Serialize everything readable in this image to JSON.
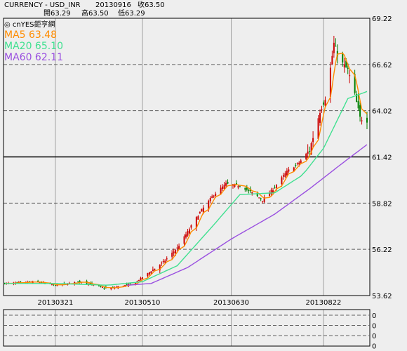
{
  "header": {
    "instrument": "CURRENCY  -  USD_INR",
    "date": "20130916",
    "close_label": "收63.50",
    "open_label": "開63.29",
    "high_label": "高63.50",
    "low_label": "低63.29"
  },
  "brand": "◎ cnYES鉅亨網",
  "colors": {
    "background": "#eeeeee",
    "up_candle": "#cc0000",
    "down_candle": "#008000",
    "ma5": "#ff8c00",
    "ma20": "#40e090",
    "ma60": "#9a50e0",
    "grid_dashed": "#606060",
    "grid_vertical": "#a0a0a0",
    "reference_line": "#000000"
  },
  "chart_data": {
    "type": "candlestick",
    "title": "CURRENCY  -  USD_INR",
    "ylim": [
      53.62,
      69.22
    ],
    "y_ticks": [
      "69.22",
      "66.62",
      "64.02",
      "61.42",
      "58.82",
      "56.22",
      "53.62"
    ],
    "x_ticks": [
      "20130321",
      "20130510",
      "20130630",
      "20130822"
    ],
    "reference_line": 61.42,
    "legend": [
      {
        "name": "MA5",
        "value": "63.48",
        "label": "MA5 63.48",
        "color": "#ff8c00"
      },
      {
        "name": "MA20",
        "value": "65.10",
        "label": "MA20 65.10",
        "color": "#40e090"
      },
      {
        "name": "MA60",
        "value": "62.11",
        "label": "MA60 62.11",
        "color": "#9a50e0"
      }
    ],
    "close_anchors": [
      {
        "date": "20130220",
        "close": 54.3
      },
      {
        "date": "20130310",
        "close": 54.4
      },
      {
        "date": "20130321",
        "close": 54.2
      },
      {
        "date": "20130405",
        "close": 54.4
      },
      {
        "date": "20130420",
        "close": 54.0
      },
      {
        "date": "20130505",
        "close": 54.3
      },
      {
        "date": "20130515",
        "close": 55.0
      },
      {
        "date": "20130522",
        "close": 55.5
      },
      {
        "date": "20130530",
        "close": 56.3
      },
      {
        "date": "20130605",
        "close": 57.2
      },
      {
        "date": "20130612",
        "close": 58.3
      },
      {
        "date": "20130620",
        "close": 59.3
      },
      {
        "date": "20130627",
        "close": 59.9
      },
      {
        "date": "20130705",
        "close": 59.8
      },
      {
        "date": "20130712",
        "close": 59.4
      },
      {
        "date": "20130718",
        "close": 59.0
      },
      {
        "date": "20130724",
        "close": 59.6
      },
      {
        "date": "20130801",
        "close": 60.6
      },
      {
        "date": "20130808",
        "close": 61.1
      },
      {
        "date": "20130814",
        "close": 61.8
      },
      {
        "date": "20130820",
        "close": 64.0
      },
      {
        "date": "20130824",
        "close": 65.0
      },
      {
        "date": "20130828",
        "close": 67.8
      },
      {
        "date": "20130831",
        "close": 66.9
      },
      {
        "date": "20130905",
        "close": 66.3
      },
      {
        "date": "20130909",
        "close": 64.9
      },
      {
        "date": "20130912",
        "close": 63.6
      },
      {
        "date": "20130916",
        "close": 63.5
      }
    ],
    "ma20_anchors": [
      {
        "date": "20130220",
        "value": 54.3
      },
      {
        "date": "20130321",
        "value": 54.3
      },
      {
        "date": "20130420",
        "value": 54.2
      },
      {
        "date": "20130510",
        "value": 54.4
      },
      {
        "date": "20130530",
        "value": 55.3
      },
      {
        "date": "20130620",
        "value": 57.6
      },
      {
        "date": "20130705",
        "value": 59.3
      },
      {
        "date": "20130725",
        "value": 59.4
      },
      {
        "date": "20130810",
        "value": 60.4
      },
      {
        "date": "20130822",
        "value": 61.9
      },
      {
        "date": "20130905",
        "value": 64.7
      },
      {
        "date": "20130916",
        "value": 65.1
      }
    ],
    "ma60_anchors": [
      {
        "date": "20130501",
        "value": 54.2
      },
      {
        "date": "20130515",
        "value": 54.3
      },
      {
        "date": "20130605",
        "value": 55.2
      },
      {
        "date": "20130630",
        "value": 56.8
      },
      {
        "date": "20130725",
        "value": 58.2
      },
      {
        "date": "20130815",
        "value": 59.7
      },
      {
        "date": "20130901",
        "value": 61.0
      },
      {
        "date": "20130916",
        "value": 62.11
      }
    ],
    "sub_panel": {
      "y_ticks": [
        "0",
        "0",
        "0",
        "0"
      ]
    }
  }
}
